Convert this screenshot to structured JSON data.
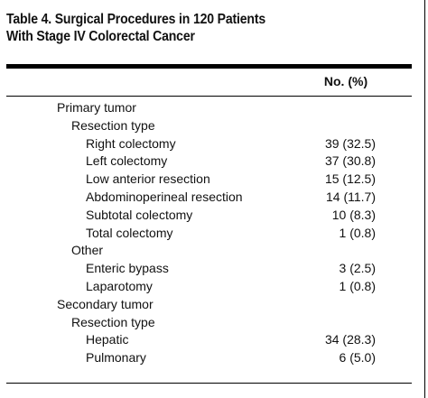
{
  "table": {
    "title_line1": "Table 4. Surgical Procedures in 120 Patients",
    "title_line2": "With Stage IV Colorectal Cancer",
    "column_header": "No. (%)",
    "rows": [
      {
        "label": "Primary tumor",
        "value": "",
        "level": 1
      },
      {
        "label": "Resection type",
        "value": "",
        "level": 2
      },
      {
        "label": "Right colectomy",
        "value": "39 (32.5)",
        "level": 3
      },
      {
        "label": "Left colectomy",
        "value": "37 (30.8)",
        "level": 3
      },
      {
        "label": "Low anterior resection",
        "value": "15 (12.5)",
        "level": 3
      },
      {
        "label": "Abdominoperineal resection",
        "value": "14 (11.7)",
        "level": 3
      },
      {
        "label": "Subtotal colectomy",
        "value": "10 (8.3)",
        "level": 3
      },
      {
        "label": "Total colectomy",
        "value": "1 (0.8)",
        "level": 3
      },
      {
        "label": "Other",
        "value": "",
        "level": 2
      },
      {
        "label": "Enteric bypass",
        "value": "3 (2.5)",
        "level": 3
      },
      {
        "label": "Laparotomy",
        "value": "1 (0.8)",
        "level": 3
      },
      {
        "label": "Secondary tumor",
        "value": "",
        "level": 1
      },
      {
        "label": "Resection type",
        "value": "",
        "level": 2
      },
      {
        "label": "Hepatic",
        "value": "34 (28.3)",
        "level": 3
      },
      {
        "label": "Pulmonary",
        "value": "6 (5.0)",
        "level": 3
      }
    ]
  }
}
